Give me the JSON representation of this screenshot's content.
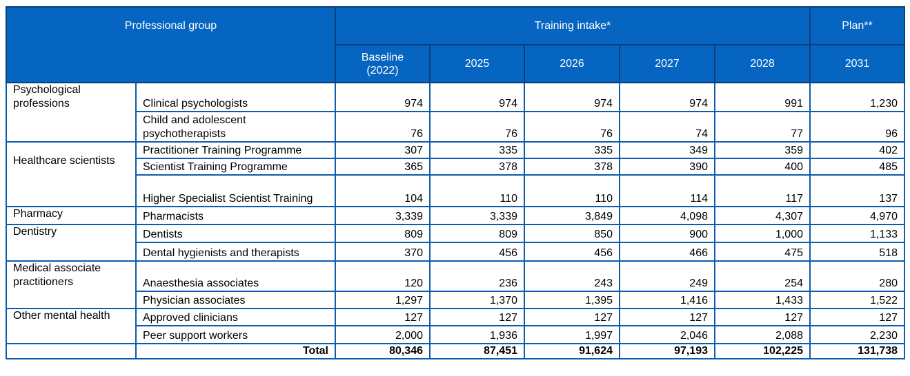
{
  "header": {
    "professional_group": "Professional group",
    "training_intake": "Training intake*",
    "plan": "Plan**",
    "years": [
      "Baseline (2022)",
      "2025",
      "2026",
      "2027",
      "2028",
      "2031"
    ],
    "baseline_line1": "Baseline",
    "baseline_line2": "(2022)"
  },
  "groups": [
    {
      "name": "Psychological professions",
      "rows": [
        {
          "label": "Clinical psychologists",
          "values": [
            "974",
            "974",
            "974",
            "974",
            "991",
            "1,230"
          ]
        },
        {
          "label": "Child and adolescent psychotherapists",
          "values": [
            "76",
            "76",
            "76",
            "74",
            "77",
            "96"
          ]
        }
      ]
    },
    {
      "name": "Healthcare scientists",
      "rows": [
        {
          "label": "Practitioner Training Programme",
          "values": [
            "307",
            "335",
            "335",
            "349",
            "359",
            "402"
          ]
        },
        {
          "label": "Scientist Training Programme",
          "values": [
            "365",
            "378",
            "378",
            "390",
            "400",
            "485"
          ]
        },
        {
          "label": "Higher Specialist Scientist Training",
          "values": [
            "104",
            "110",
            "110",
            "114",
            "117",
            "137"
          ]
        }
      ]
    },
    {
      "name": "Pharmacy",
      "rows": [
        {
          "label": "Pharmacists",
          "values": [
            "3,339",
            "3,339",
            "3,849",
            "4,098",
            "4,307",
            "4,970"
          ]
        }
      ]
    },
    {
      "name": "Dentistry",
      "rows": [
        {
          "label": "Dentists",
          "values": [
            "809",
            "809",
            "850",
            "900",
            "1,000",
            "1,133"
          ]
        },
        {
          "label": "Dental hygienists and therapists",
          "values": [
            "370",
            "456",
            "456",
            "466",
            "475",
            "518"
          ]
        }
      ]
    },
    {
      "name": "Medical associate practitioners",
      "rows": [
        {
          "label": "Anaesthesia associates",
          "values": [
            "120",
            "236",
            "243",
            "249",
            "254",
            "280"
          ]
        },
        {
          "label": "Physician associates",
          "values": [
            "1,297",
            "1,370",
            "1,395",
            "1,416",
            "1,433",
            "1,522"
          ]
        }
      ]
    },
    {
      "name": "Other mental health",
      "rows": [
        {
          "label": "Approved clinicians",
          "values": [
            "127",
            "127",
            "127",
            "127",
            "127",
            "127"
          ]
        },
        {
          "label": "Peer support workers",
          "values": [
            "2,000",
            "1,936",
            "1,997",
            "2,046",
            "2,088",
            "2,230"
          ]
        }
      ]
    }
  ],
  "total": {
    "label": "Total",
    "values": [
      "80,346",
      "87,451",
      "91,624",
      "97,193",
      "102,225",
      "131,738"
    ]
  }
}
